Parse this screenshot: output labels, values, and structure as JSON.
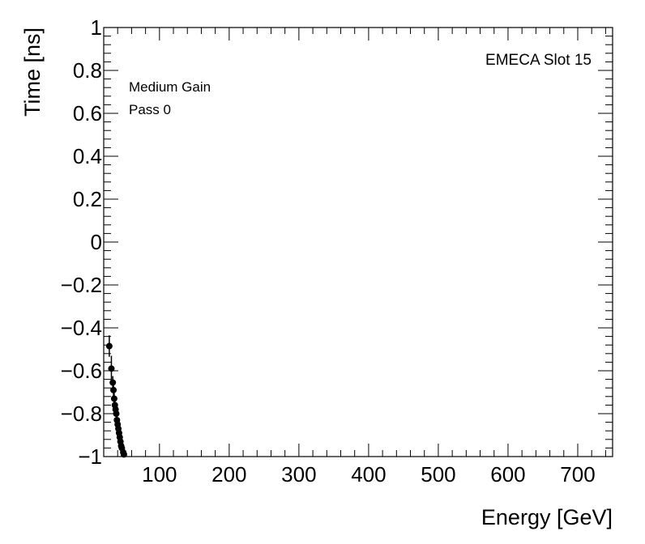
{
  "chart_data": {
    "type": "scatter",
    "title": "",
    "xlabel": "Energy [GeV]",
    "ylabel": "Time [ns]",
    "xlim": [
      20,
      750
    ],
    "ylim": [
      -1,
      1
    ],
    "x_ticks": [
      100,
      200,
      300,
      400,
      500,
      600,
      700
    ],
    "x_tick_labels": [
      "100",
      "200",
      "300",
      "400",
      "500",
      "600",
      "700"
    ],
    "y_ticks": [
      -1,
      -0.8,
      -0.6,
      -0.4,
      -0.2,
      0,
      0.2,
      0.4,
      0.6,
      0.8,
      1
    ],
    "y_tick_labels": [
      "−1",
      "−0.8",
      "−0.6",
      "−0.4",
      "−0.2",
      "0",
      "0.2",
      "0.4",
      "0.6",
      "0.8",
      "1"
    ],
    "grid": false,
    "annotations": {
      "top_right": "EMECA Slot 15",
      "line1": "Medium Gain",
      "line2": "Pass 0"
    },
    "series": [
      {
        "points": [
          {
            "x": 28,
            "y": -0.485,
            "err": 0.05
          },
          {
            "x": 31,
            "y": -0.59,
            "err": 0.06
          },
          {
            "x": 33,
            "y": -0.655,
            "err": 0.03
          },
          {
            "x": 34,
            "y": -0.69,
            "err": 0.03
          },
          {
            "x": 35,
            "y": -0.73,
            "err": 0.03
          },
          {
            "x": 36,
            "y": -0.76,
            "err": 0.03
          },
          {
            "x": 37,
            "y": -0.78,
            "err": 0.03
          },
          {
            "x": 38,
            "y": -0.8,
            "err": 0.03
          },
          {
            "x": 39,
            "y": -0.83,
            "err": 0.03
          },
          {
            "x": 40,
            "y": -0.85,
            "err": 0.03
          },
          {
            "x": 41,
            "y": -0.87,
            "err": 0.03
          },
          {
            "x": 42,
            "y": -0.89,
            "err": 0.02
          },
          {
            "x": 43,
            "y": -0.91,
            "err": 0.02
          },
          {
            "x": 44,
            "y": -0.93,
            "err": 0.02
          },
          {
            "x": 45,
            "y": -0.95,
            "err": 0.02
          },
          {
            "x": 46,
            "y": -0.96,
            "err": 0.02
          },
          {
            "x": 48,
            "y": -0.98,
            "err": 0.02
          },
          {
            "x": 49,
            "y": -0.99,
            "err": 0.01
          }
        ]
      }
    ]
  }
}
